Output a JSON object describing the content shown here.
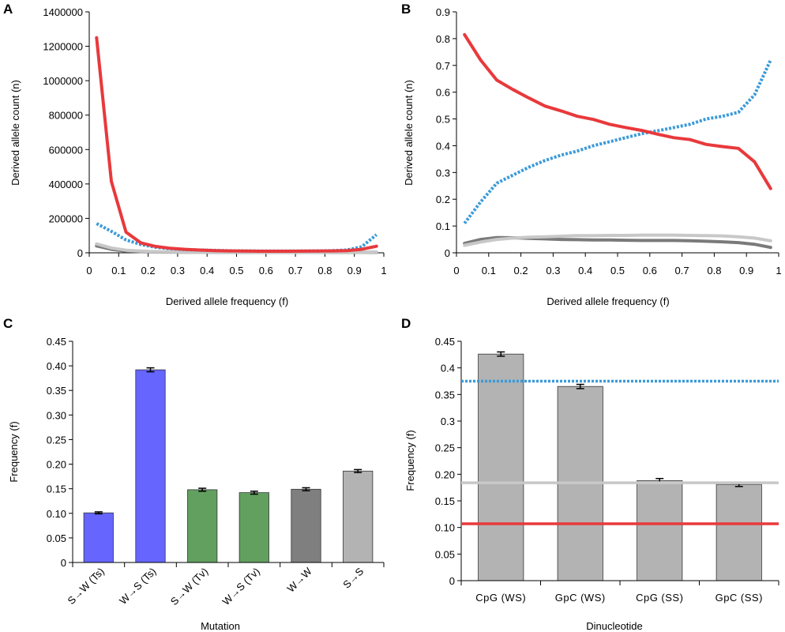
{
  "chart_data": [
    {
      "panel": "A",
      "type": "line",
      "xlabel": "Derived allele frequency (f)",
      "ylabel": "Derived allele count (n)",
      "xlim": [
        0,
        1
      ],
      "ylim": [
        0,
        1400000
      ],
      "xticks": [
        "0",
        "0.1",
        "0.2",
        "0.3",
        "0.4",
        "0.5",
        "0.6",
        "0.7",
        "0.8",
        "0.9",
        "1"
      ],
      "yticks": [
        "0",
        "200000",
        "400000",
        "600000",
        "800000",
        "1000000",
        "1200000",
        "1400000"
      ],
      "x": [
        0.025,
        0.075,
        0.125,
        0.175,
        0.225,
        0.275,
        0.325,
        0.375,
        0.425,
        0.475,
        0.525,
        0.575,
        0.625,
        0.675,
        0.725,
        0.775,
        0.825,
        0.875,
        0.925,
        0.975
      ],
      "series": [
        {
          "color": "#e8393c",
          "dash": "solid",
          "width": 4,
          "values": [
            1250000,
            415000,
            120000,
            58000,
            37000,
            26000,
            20000,
            16000,
            13000,
            11000,
            10000,
            9000,
            9000,
            9000,
            9500,
            10000,
            11000,
            13000,
            20000,
            38000
          ]
        },
        {
          "color": "#3a9ad9",
          "dash": "dotted",
          "width": 4,
          "values": [
            170000,
            125000,
            75000,
            48000,
            32000,
            24000,
            19000,
            16000,
            14000,
            12000,
            11000,
            10500,
            10000,
            10000,
            10500,
            11000,
            12500,
            16000,
            35000,
            105000
          ]
        },
        {
          "color": "#c8c8c8",
          "dash": "solid",
          "width": 4,
          "values": [
            52000,
            28000,
            15000,
            10000,
            7000,
            5500,
            4500,
            4000,
            3500,
            3200,
            3000,
            2800,
            2700,
            2700,
            2700,
            2800,
            3000,
            3200,
            3800,
            5000
          ]
        },
        {
          "color": "#7a7a7a",
          "dash": "solid",
          "width": 4,
          "values": [
            40000,
            20000,
            10000,
            7000,
            5000,
            4000,
            3500,
            3000,
            2800,
            2600,
            2400,
            2300,
            2200,
            2200,
            2200,
            2200,
            2300,
            2400,
            2600,
            2800
          ]
        }
      ]
    },
    {
      "panel": "B",
      "type": "line",
      "xlabel": "Derived allele frequency (f)",
      "ylabel": "Derived allele count (n)",
      "xlim": [
        0,
        1
      ],
      "ylim": [
        0,
        0.9
      ],
      "xticks": [
        "0",
        "0.1",
        "0.2",
        "0.3",
        "0.4",
        "0.5",
        "0.6",
        "0.7",
        "0.8",
        "0.9",
        "1"
      ],
      "yticks": [
        "0",
        "0.1",
        "0.2",
        "0.3",
        "0.4",
        "0.5",
        "0.6",
        "0.7",
        "0.8",
        "0.9"
      ],
      "x": [
        0.025,
        0.075,
        0.125,
        0.175,
        0.225,
        0.275,
        0.325,
        0.375,
        0.425,
        0.475,
        0.525,
        0.575,
        0.625,
        0.675,
        0.725,
        0.775,
        0.825,
        0.875,
        0.925,
        0.975
      ],
      "series": [
        {
          "color": "#e8393c",
          "dash": "solid",
          "width": 4,
          "values": [
            0.815,
            0.72,
            0.645,
            0.61,
            0.578,
            0.548,
            0.53,
            0.51,
            0.498,
            0.48,
            0.468,
            0.457,
            0.443,
            0.43,
            0.423,
            0.405,
            0.397,
            0.39,
            0.34,
            0.24
          ]
        },
        {
          "color": "#3a9ad9",
          "dash": "dotted",
          "width": 4,
          "values": [
            0.11,
            0.19,
            0.26,
            0.29,
            0.32,
            0.345,
            0.365,
            0.38,
            0.4,
            0.415,
            0.43,
            0.445,
            0.456,
            0.468,
            0.48,
            0.5,
            0.51,
            0.525,
            0.59,
            0.72
          ]
        },
        {
          "color": "#c8c8c8",
          "dash": "solid",
          "width": 4,
          "values": [
            0.028,
            0.04,
            0.05,
            0.055,
            0.058,
            0.06,
            0.062,
            0.064,
            0.064,
            0.065,
            0.065,
            0.066,
            0.066,
            0.066,
            0.065,
            0.064,
            0.063,
            0.06,
            0.055,
            0.045
          ]
        },
        {
          "color": "#7a7a7a",
          "dash": "solid",
          "width": 4,
          "values": [
            0.035,
            0.05,
            0.057,
            0.056,
            0.054,
            0.052,
            0.05,
            0.049,
            0.048,
            0.048,
            0.047,
            0.046,
            0.046,
            0.046,
            0.045,
            0.043,
            0.041,
            0.038,
            0.032,
            0.02
          ]
        }
      ]
    },
    {
      "panel": "C",
      "type": "bar",
      "xlabel": "Mutation",
      "ylabel": "Frequency (f)",
      "ylim": [
        0,
        0.45
      ],
      "yticks": [
        "0",
        "0.05",
        "0.10",
        "0.15",
        "0.20",
        "0.25",
        "0.30",
        "0.35",
        "0.40",
        "0.45"
      ],
      "categories": [
        "S→W (Ts)",
        "W→S (Ts)",
        "S→W (Tv)",
        "W→S (Tv)",
        "W→W",
        "S→S"
      ],
      "values": [
        0.101,
        0.392,
        0.148,
        0.142,
        0.149,
        0.186
      ],
      "errors": [
        0.002,
        0.004,
        0.003,
        0.003,
        0.003,
        0.003
      ],
      "colors": [
        "#6666ff",
        "#6666ff",
        "#62a060",
        "#62a060",
        "#7f7f7f",
        "#b3b3b3"
      ]
    },
    {
      "panel": "D",
      "type": "bar",
      "xlabel": "Dinucleotide",
      "ylabel": "Frequency (f)",
      "ylim": [
        0,
        0.45
      ],
      "yticks": [
        "0",
        "0.05",
        "0.10",
        "0.15",
        "0.20",
        "0.25",
        "0.3",
        "0.35",
        "0.4",
        "0.45"
      ],
      "categories": [
        "CpG (WS)",
        "GpC (WS)",
        "CpG (SS)",
        "GpC (SS)"
      ],
      "values": [
        0.426,
        0.365,
        0.188,
        0.181
      ],
      "errors": [
        0.004,
        0.004,
        0.004,
        0.004
      ],
      "colors": [
        "#b3b3b3",
        "#b3b3b3",
        "#b3b3b3",
        "#b3b3b3"
      ],
      "reference_lines": [
        {
          "value": 0.375,
          "color": "#3a9ad9",
          "dash": "dotted"
        },
        {
          "value": 0.184,
          "color": "#c8c8c8",
          "dash": "solid"
        },
        {
          "value": 0.107,
          "color": "#e8393c",
          "dash": "solid"
        }
      ]
    }
  ]
}
